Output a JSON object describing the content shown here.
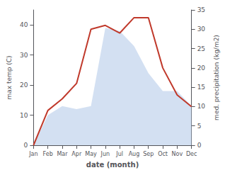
{
  "chart_data": {
    "type": "line",
    "xlabel": "date (month)",
    "ylabel": "max temp (C)",
    "y2label": "med. precipitation (kg/m2)",
    "categories": [
      "Jan",
      "Feb",
      "Mar",
      "Apr",
      "May",
      "Jun",
      "Jul",
      "Aug",
      "Sep",
      "Oct",
      "Nov",
      "Dec"
    ],
    "ylim": [
      0,
      45
    ],
    "yticks": [
      0,
      10,
      20,
      30,
      40
    ],
    "y2lim": [
      0,
      35
    ],
    "y2ticks": [
      0,
      5,
      10,
      15,
      20,
      25,
      30,
      35
    ],
    "grid": false,
    "series": [
      {
        "type": "area",
        "color": "#aec6e8",
        "values": [
          0,
          10,
          13,
          12,
          13,
          39,
          38,
          33,
          24,
          18,
          18,
          13
        ]
      },
      {
        "type": "line",
        "color": "#c0392b",
        "axis": "y2",
        "values": [
          0,
          9,
          12,
          16,
          30,
          31,
          29,
          33,
          33,
          20,
          13,
          10
        ]
      }
    ]
  }
}
